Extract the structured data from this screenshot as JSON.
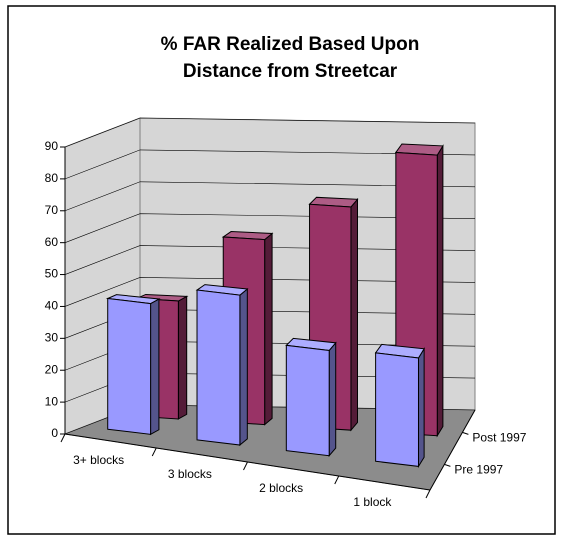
{
  "chart_data": {
    "type": "bar3d",
    "title": "% FAR Realized Based Upon",
    "subtitle": "Distance from Streetcar",
    "categories": [
      "3+ blocks",
      "3 blocks",
      "2 blocks",
      "1 block"
    ],
    "series": [
      {
        "name": "Pre 1997",
        "color": "#9999ff",
        "values": [
          41,
          47,
          33,
          34
        ]
      },
      {
        "name": "Post 1997",
        "color": "#993366",
        "values": [
          37,
          58,
          70,
          88
        ]
      }
    ],
    "ylim": [
      0,
      90
    ],
    "yticks": [
      0,
      10,
      20,
      30,
      40,
      50,
      60,
      70,
      80,
      90
    ],
    "grid": true
  }
}
